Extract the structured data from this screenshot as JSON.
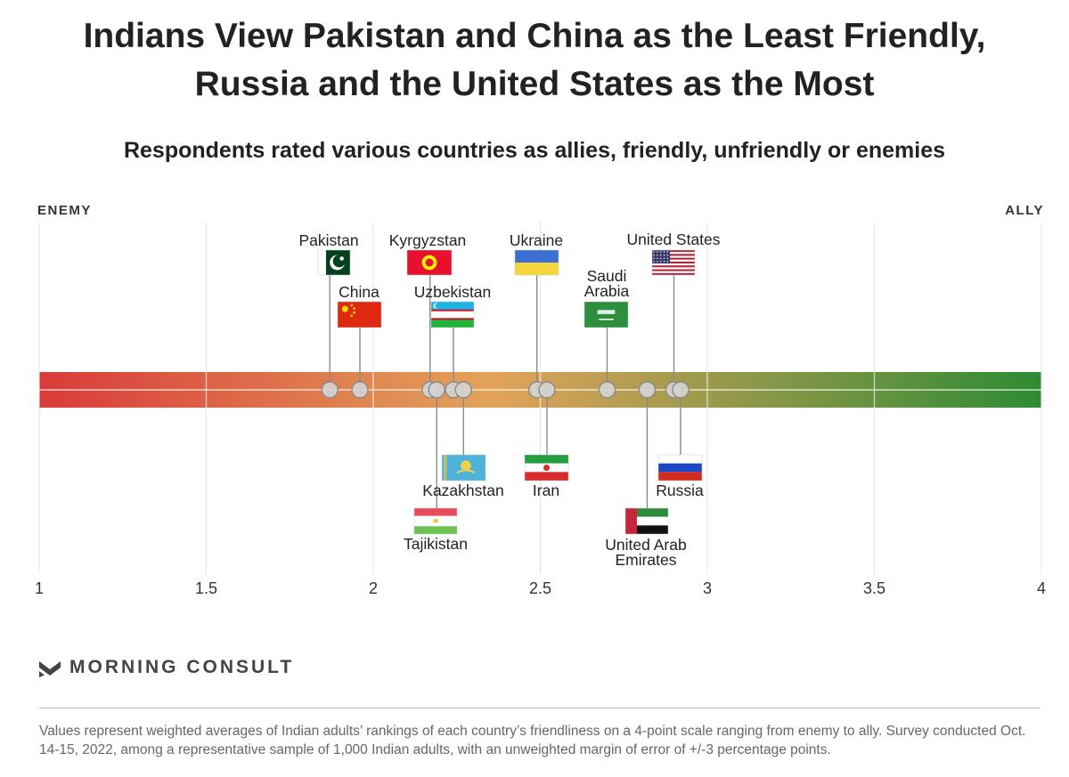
{
  "title_line1": "Indians View Pakistan and China as the Least Friendly,",
  "title_line2": "Russia and the United States as the Most",
  "subtitle": "Respondents rated various countries as allies, friendly, unfriendly or enemies",
  "left_label": "ENEMY",
  "right_label": "ALLY",
  "logo_text": "MORNING CONSULT",
  "footnote": "Values represent weighted averages of Indian adults’ rankings of each country’s friendliness on a 4-point scale ranging from enemy to ally. Survey conducted Oct. 14-15, 2022, among a representative sample of 1,000 Indian adults, with an unweighted margin of error of +/-3 percentage points.",
  "chart_data": {
    "type": "scatter",
    "xlim": [
      1,
      4
    ],
    "ticks": [
      1,
      1.5,
      2,
      2.5,
      3,
      3.5,
      4
    ],
    "tick_labels": [
      "1",
      "1.5",
      "2",
      "2.5",
      "3",
      "3.5",
      "4"
    ],
    "grid": true,
    "colors": {
      "enemy": "#d93a3a",
      "neutral": "#e3a35a",
      "ally": "#2e8b35"
    },
    "points": [
      {
        "country": "Pakistan",
        "value": 1.87,
        "side": "above",
        "flag": "pakistan"
      },
      {
        "country": "China",
        "value": 1.96,
        "side": "above",
        "flag": "china"
      },
      {
        "country": "Kyrgyzstan",
        "value": 2.17,
        "side": "above",
        "flag": "kyrgyzstan"
      },
      {
        "country": "Tajikistan",
        "value": 2.19,
        "side": "below",
        "flag": "tajikistan"
      },
      {
        "country": "Uzbekistan",
        "value": 2.24,
        "side": "above",
        "flag": "uzbekistan"
      },
      {
        "country": "Kazakhstan",
        "value": 2.27,
        "side": "below",
        "flag": "kazakhstan"
      },
      {
        "country": "Ukraine",
        "value": 2.49,
        "side": "above",
        "flag": "ukraine"
      },
      {
        "country": "Iran",
        "value": 2.52,
        "side": "below",
        "flag": "iran"
      },
      {
        "country": "Saudi Arabia",
        "value": 2.7,
        "side": "above",
        "flag": "saudi"
      },
      {
        "country": "United Arab Emirates",
        "value": 2.82,
        "side": "below",
        "flag": "uae"
      },
      {
        "country": "United States",
        "value": 2.9,
        "side": "above",
        "flag": "usa"
      },
      {
        "country": "Russia",
        "value": 2.92,
        "side": "below",
        "flag": "russia"
      }
    ]
  }
}
